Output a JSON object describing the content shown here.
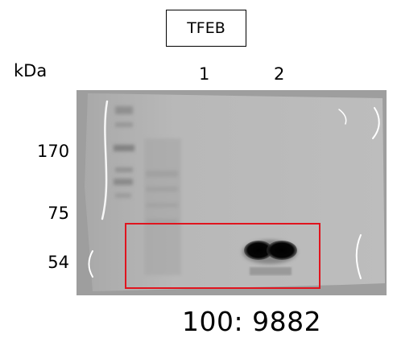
{
  "title": "TFEB",
  "unit_label": "kDa",
  "lanes": [
    "1",
    "2"
  ],
  "markers": [
    "170",
    "75",
    "54"
  ],
  "ratio_text": "100: 9882",
  "colors": {
    "membrane": "#b6b6b6",
    "highlight_box": "#e0141e",
    "band": "#000000"
  }
}
